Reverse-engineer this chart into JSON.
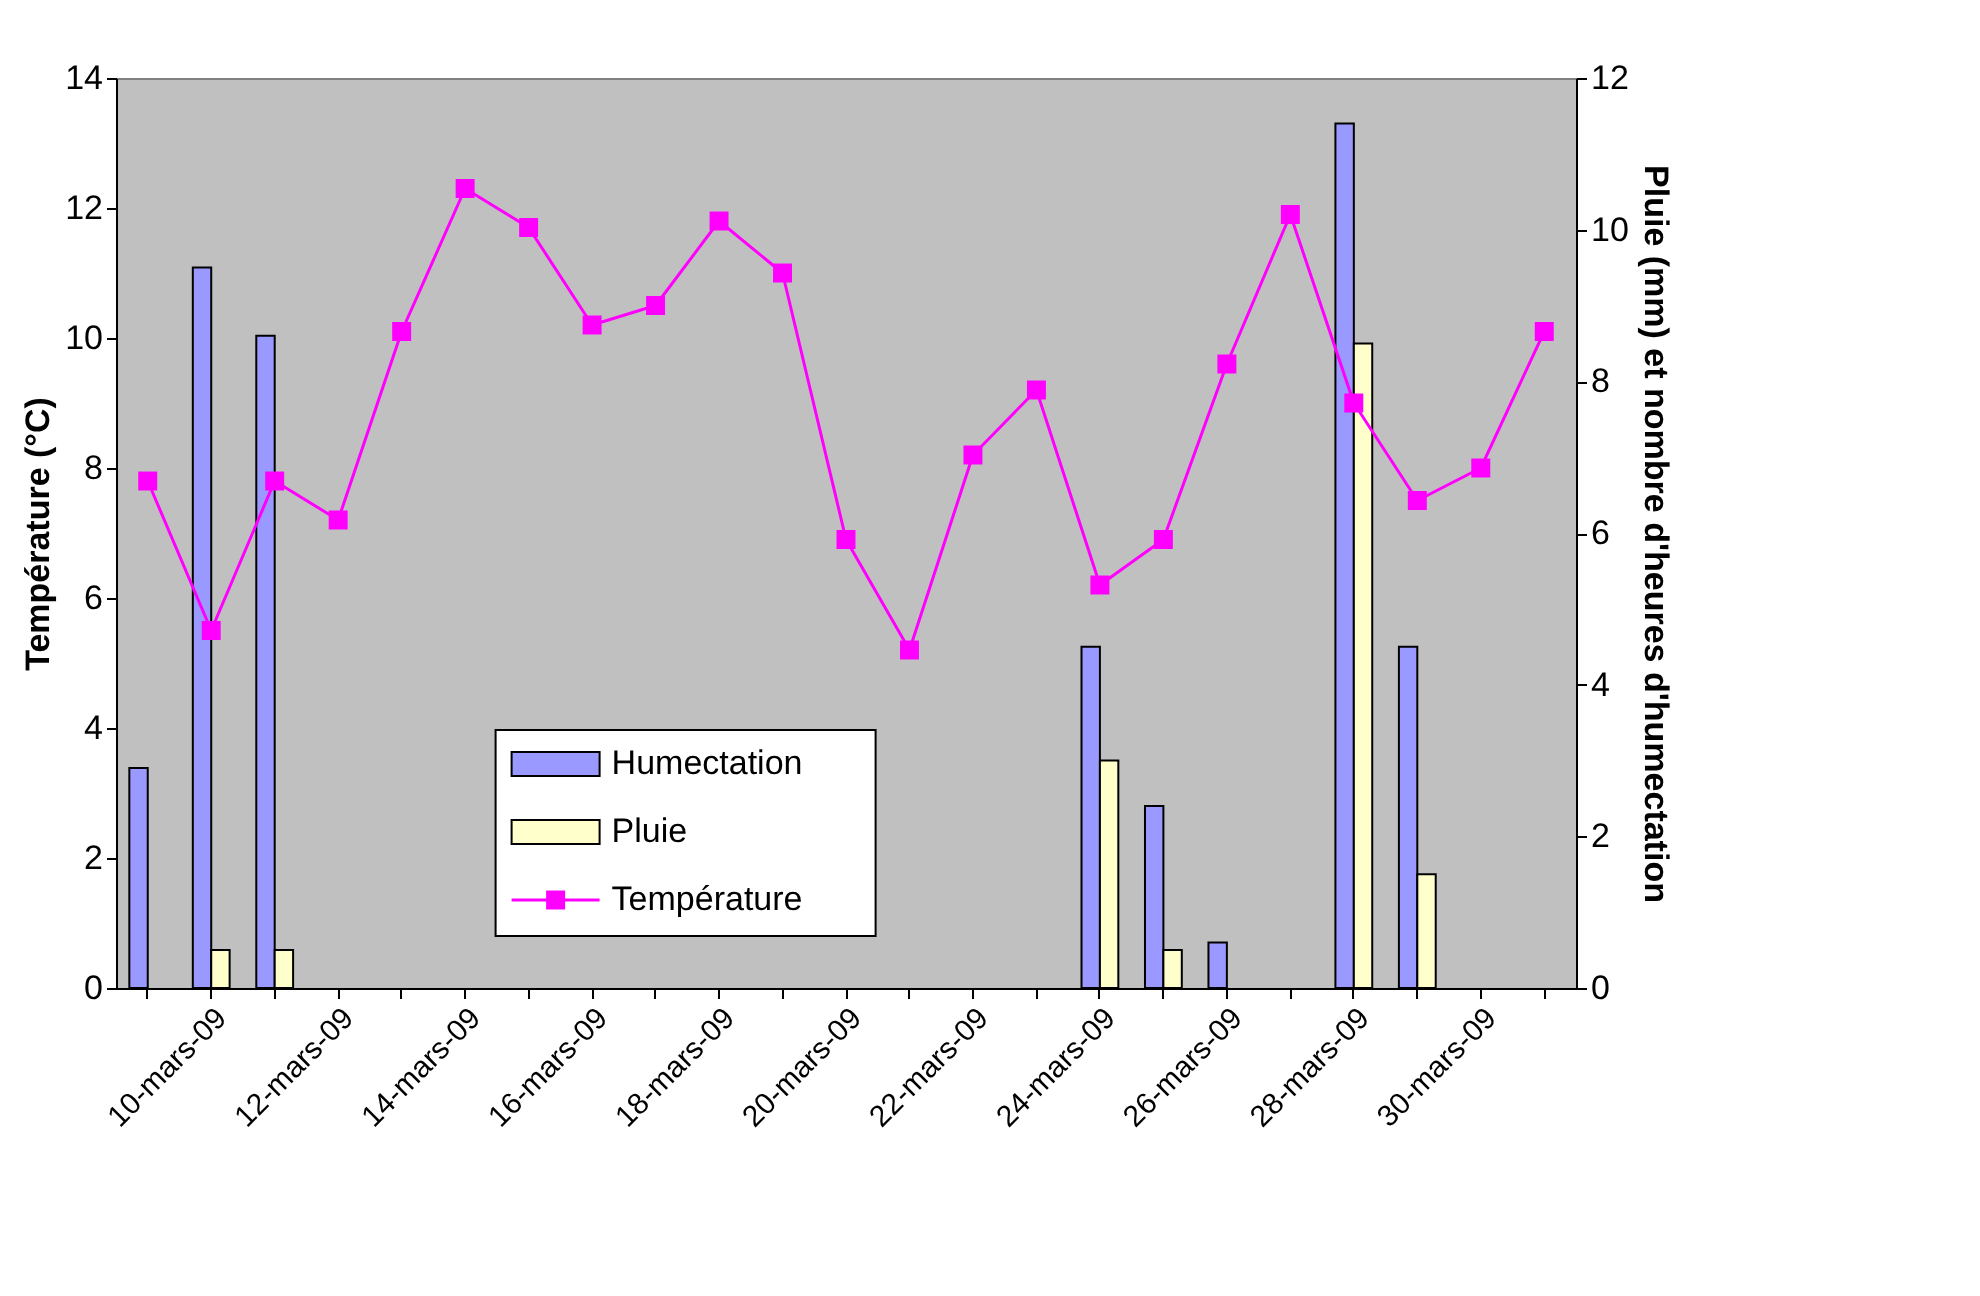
{
  "chart_data": {
    "type": "bar",
    "categories": [
      null,
      "10-mars-09",
      null,
      "12-mars-09",
      null,
      "14-mars-09",
      null,
      "16-mars-09",
      null,
      "18-mars-09",
      null,
      "20-mars-09",
      null,
      "22-mars-09",
      null,
      "24-mars-09",
      null,
      "26-mars-09",
      null,
      "28-mars-09",
      null,
      "30-mars-09",
      null
    ],
    "series": [
      {
        "name": "Humectation",
        "color": "#9999ff",
        "axis": "y2",
        "values": [
          2.9,
          9.5,
          8.6,
          null,
          null,
          null,
          null,
          null,
          null,
          null,
          null,
          null,
          null,
          null,
          null,
          4.5,
          2.4,
          0.6,
          null,
          11.4,
          4.5,
          null,
          null
        ]
      },
      {
        "name": "Pluie",
        "color": "#ffffcc",
        "axis": "y2",
        "values": [
          null,
          0.5,
          0.5,
          null,
          null,
          null,
          null,
          null,
          null,
          null,
          null,
          null,
          null,
          null,
          null,
          3.0,
          0.5,
          null,
          null,
          8.5,
          1.5,
          null,
          null
        ]
      },
      {
        "name": "Température",
        "type": "line",
        "color": "#ff00ff",
        "values": [
          7.8,
          5.5,
          7.8,
          7.2,
          10.1,
          12.3,
          11.7,
          10.2,
          10.5,
          11.8,
          11.0,
          6.9,
          5.2,
          8.2,
          9.2,
          6.2,
          6.9,
          9.6,
          11.9,
          9.0,
          7.5,
          8.0,
          10.1
        ]
      }
    ],
    "ylabel": "Température (°C)",
    "y2label": "Pluie (mm) et nombre d'heures d'humectation",
    "ylim": [
      0,
      14
    ],
    "yticks": [
      0,
      2,
      4,
      6,
      8,
      10,
      12,
      14
    ],
    "y2lim": [
      0,
      12
    ],
    "y2ticks": [
      0,
      2,
      4,
      6,
      8,
      10,
      12
    ],
    "marker": "square",
    "grid": false,
    "legend": "bottom"
  }
}
